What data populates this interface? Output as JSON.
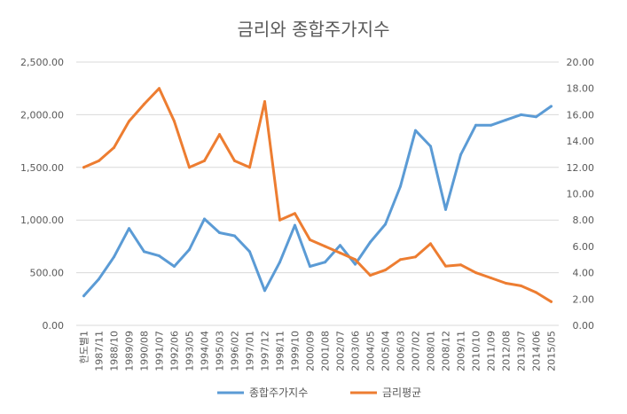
{
  "chart_data": {
    "type": "line",
    "title": "금리와 종합주가지수",
    "x": [
      "한도별1",
      "1987/11",
      "1988/10",
      "1989/09",
      "1990/08",
      "1991/07",
      "1992/06",
      "1993/05",
      "1994/04",
      "1995/03",
      "1996/02",
      "1997/01",
      "1997/12",
      "1998/11",
      "1999/10",
      "2000/09",
      "2001/08",
      "2002/07",
      "2003/06",
      "2004/05",
      "2005/04",
      "2006/03",
      "2007/02",
      "2008/01",
      "2008/12",
      "2009/11",
      "2010/10",
      "2011/09",
      "2012/08",
      "2013/07",
      "2014/06",
      "2015/05"
    ],
    "series": [
      {
        "name": "종합주가지수",
        "axis": "left",
        "color": "#5B9BD5",
        "values": [
          280,
          440,
          650,
          920,
          700,
          660,
          560,
          720,
          1010,
          880,
          850,
          700,
          330,
          600,
          950,
          560,
          600,
          760,
          580,
          790,
          960,
          1320,
          1850,
          1700,
          1100,
          1620,
          1900,
          1900,
          1950,
          2000,
          1980,
          2080
        ]
      },
      {
        "name": "금리평균",
        "axis": "right",
        "color": "#ED7D31",
        "values": [
          12.0,
          12.5,
          13.5,
          15.5,
          16.8,
          18.0,
          15.5,
          12.0,
          12.5,
          14.5,
          12.5,
          12.0,
          17.0,
          8.0,
          8.5,
          6.5,
          6.0,
          5.5,
          5.0,
          3.8,
          4.2,
          5.0,
          5.2,
          6.2,
          4.5,
          4.6,
          4.0,
          3.6,
          3.2,
          3.0,
          2.5,
          1.8
        ]
      }
    ],
    "y_left": {
      "ylim": [
        0,
        2500
      ],
      "ticks": [
        "0.00",
        "500.00",
        "1,000.00",
        "1,500.00",
        "2,000.00",
        "2,500.00"
      ]
    },
    "y_right": {
      "ylim": [
        0,
        20
      ],
      "ticks": [
        "0.00",
        "2.00",
        "4.00",
        "6.00",
        "8.00",
        "10.00",
        "12.00",
        "14.00",
        "16.00",
        "18.00",
        "20.00"
      ]
    },
    "grid": true,
    "legend_position": "bottom"
  }
}
